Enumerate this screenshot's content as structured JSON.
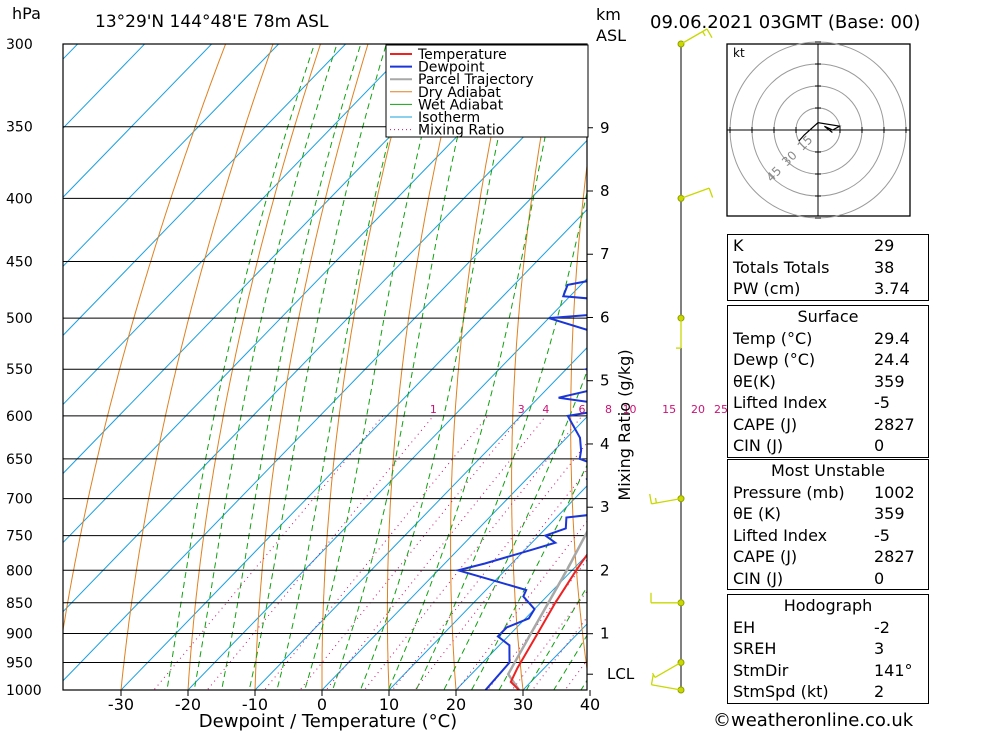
{
  "header": {
    "pressure_unit": "hPa",
    "location": "13°29'N  144°48'E  78m  ASL",
    "height_unit": "km",
    "height_ref": "ASL",
    "datetime": "09.06.2021  03GMT  (Base: 00)"
  },
  "legend": [
    "Temperature",
    "Dewpoint",
    "Parcel Trajectory",
    "Dry Adiabat",
    "Wet Adiabat",
    "Isotherm",
    "Mixing Ratio"
  ],
  "colors": {
    "temperature": "#ee2222",
    "dewpoint": "#1a35d8",
    "parcel": "#a8a8a8",
    "dry_adiabat": "#e08020",
    "wet_adiabat": "#10a010",
    "isotherm": "#1aa0e0",
    "mixing_ratio": "#cc1177",
    "wind": "#c8d800"
  },
  "chart_data": {
    "type": "skew-t",
    "xlabel": "Dewpoint / Temperature (°C)",
    "ylabel_right": "Mixing Ratio (g/kg)",
    "x_ticks": [
      -30,
      -20,
      -10,
      0,
      10,
      20,
      30,
      40
    ],
    "pressure_levels": [
      300,
      350,
      400,
      450,
      500,
      550,
      600,
      650,
      700,
      750,
      800,
      850,
      900,
      950,
      1000
    ],
    "height_ticks_km": [
      1,
      2,
      3,
      4,
      5,
      6,
      7,
      8,
      9
    ],
    "lcl_label": "LCL",
    "lcl_pressure": 971,
    "mixing_ratio_labels": [
      "1",
      "3",
      "4",
      "6",
      "8",
      "10",
      "15",
      "20",
      "25"
    ],
    "mixing_ratio_values": [
      1,
      3,
      4,
      6,
      8,
      10,
      15,
      20,
      25
    ],
    "temperature": [
      [
        1000,
        29.4
      ],
      [
        985,
        27
      ],
      [
        960,
        26
      ],
      [
        930,
        25
      ],
      [
        900,
        24
      ],
      [
        850,
        22.2
      ],
      [
        800,
        20.6
      ],
      [
        760,
        19.5
      ],
      [
        730,
        16.2
      ],
      [
        700,
        13.6
      ],
      [
        650,
        10.7
      ],
      [
        600,
        7.3
      ],
      [
        550,
        3.1
      ],
      [
        500,
        -1.9
      ],
      [
        475,
        -3.7
      ],
      [
        450,
        -6.4
      ],
      [
        420,
        -9.8
      ],
      [
        400,
        -12.2
      ],
      [
        380,
        -16.1
      ],
      [
        350,
        -21.0
      ],
      [
        330,
        -25.0
      ],
      [
        300,
        -31.0
      ]
    ],
    "dewpoint": [
      [
        1000,
        24.4
      ],
      [
        950,
        24
      ],
      [
        920,
        21.5
      ],
      [
        905,
        18.5
      ],
      [
        890,
        18.5
      ],
      [
        875,
        20.5
      ],
      [
        860,
        20
      ],
      [
        840,
        16.5
      ],
      [
        830,
        16
      ],
      [
        800,
        3
      ],
      [
        790,
        6
      ],
      [
        770,
        11
      ],
      [
        760,
        13.5
      ],
      [
        750,
        11
      ],
      [
        740,
        13
      ],
      [
        725,
        11.5
      ],
      [
        720,
        16
      ],
      [
        705,
        17
      ],
      [
        690,
        12
      ],
      [
        675,
        9
      ],
      [
        660,
        9.5
      ],
      [
        650,
        5
      ],
      [
        640,
        4
      ],
      [
        625,
        2
      ],
      [
        600,
        -3
      ],
      [
        590,
        4
      ],
      [
        580,
        -7
      ],
      [
        565,
        0
      ],
      [
        550,
        -7
      ],
      [
        540,
        -4
      ],
      [
        520,
        -4
      ],
      [
        515,
        -10
      ],
      [
        500,
        -20
      ],
      [
        490,
        -1
      ],
      [
        480,
        -21
      ],
      [
        470,
        -22
      ],
      [
        455,
        -11
      ],
      [
        445,
        -6
      ],
      [
        440,
        -16
      ],
      [
        430,
        -7
      ],
      [
        425,
        -10
      ],
      [
        420,
        -23
      ],
      [
        410,
        -16
      ],
      [
        390,
        -18
      ],
      [
        380,
        -21
      ],
      [
        370,
        -27
      ],
      [
        330,
        -34
      ],
      [
        300,
        -35
      ]
    ],
    "parcel": [
      [
        1000,
        29.4
      ],
      [
        971,
        25.5
      ],
      [
        900,
        23.0
      ],
      [
        800,
        19.2
      ],
      [
        700,
        14.5
      ],
      [
        600,
        8.6
      ],
      [
        500,
        1.3
      ],
      [
        450,
        -3.3
      ],
      [
        400,
        -8.7
      ],
      [
        350,
        -15.0
      ],
      [
        300,
        -22.5
      ]
    ],
    "wind": [
      {
        "p": 1000,
        "dir": 280,
        "speed": 10
      },
      {
        "p": 950,
        "dir": 240,
        "speed": 5
      },
      {
        "p": 850,
        "dir": 270,
        "speed": 10
      },
      {
        "p": 700,
        "dir": 260,
        "speed": 15
      },
      {
        "p": 500,
        "dir": 180,
        "speed": 5
      },
      {
        "p": 400,
        "dir": 70,
        "speed": 10
      },
      {
        "p": 300,
        "dir": 60,
        "speed": 15
      }
    ],
    "hodograph": {
      "unit": "kt",
      "rings": [
        "15",
        "30",
        "45"
      ]
    }
  },
  "indices": [
    {
      "k": "K",
      "v": "29"
    },
    {
      "k": "Totals Totals",
      "v": "38"
    },
    {
      "k": "PW (cm)",
      "v": "3.74"
    }
  ],
  "surface": {
    "title": "Surface",
    "rows": [
      {
        "k": "Temp (°C)",
        "v": "29.4"
      },
      {
        "k": "Dewp (°C)",
        "v": "24.4"
      },
      {
        "k": "θE(K)",
        "v": "359"
      },
      {
        "k": "Lifted Index",
        "v": "-5"
      },
      {
        "k": "CAPE (J)",
        "v": "2827"
      },
      {
        "k": "CIN (J)",
        "v": "0"
      }
    ]
  },
  "most_unstable": {
    "title": "Most Unstable",
    "rows": [
      {
        "k": "Pressure (mb)",
        "v": "1002"
      },
      {
        "k": "θE (K)",
        "v": "359"
      },
      {
        "k": "Lifted Index",
        "v": "-5"
      },
      {
        "k": "CAPE (J)",
        "v": "2827"
      },
      {
        "k": "CIN (J)",
        "v": "0"
      }
    ]
  },
  "hodograph_table": {
    "title": "Hodograph",
    "rows": [
      {
        "k": "EH",
        "v": "-2"
      },
      {
        "k": "SREH",
        "v": "3"
      },
      {
        "k": "StmDir",
        "v": "141°"
      },
      {
        "k": "StmSpd (kt)",
        "v": "2"
      }
    ]
  },
  "footer": "©weatheronline.co.uk"
}
